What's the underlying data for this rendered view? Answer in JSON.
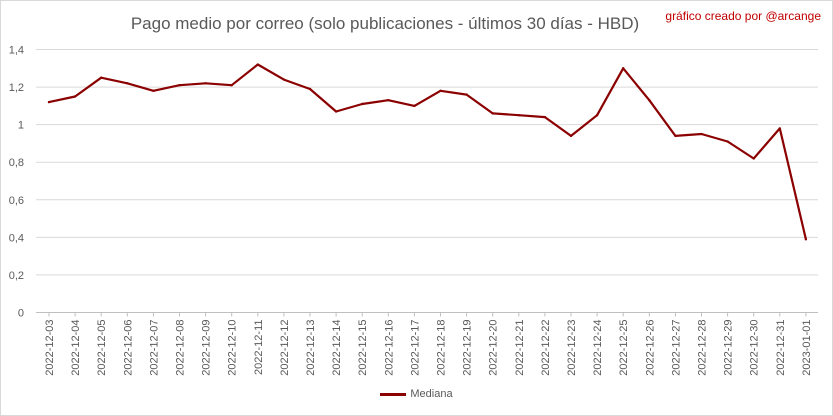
{
  "chart_data": {
    "type": "line",
    "title": "Pago medio por correo (solo publicaciones - últimos 30 días - HBD)",
    "credit": "gráfico creado por @arcange",
    "xlabel": "",
    "ylabel": "",
    "ylim": [
      0,
      1.4
    ],
    "ytick_labels": [
      "0",
      "0,2",
      "0,4",
      "0,6",
      "0,8",
      "1",
      "1,2",
      "1,4"
    ],
    "y_ticks": [
      0,
      0.2,
      0.4,
      0.6,
      0.8,
      1.0,
      1.2,
      1.4
    ],
    "grid": true,
    "legend_position": "bottom",
    "categories": [
      "2022-12-03",
      "2022-12-04",
      "2022-12-05",
      "2022-12-06",
      "2022-12-07",
      "2022-12-08",
      "2022-12-09",
      "2022-12-10",
      "2022-12-11",
      "2022-12-12",
      "2022-12-13",
      "2022-12-14",
      "2022-12-15",
      "2022-12-16",
      "2022-12-17",
      "2022-12-18",
      "2022-12-19",
      "2022-12-20",
      "2022-12-21",
      "2022-12-22",
      "2022-12-23",
      "2022-12-24",
      "2022-12-25",
      "2022-12-26",
      "2022-12-27",
      "2022-12-28",
      "2022-12-29",
      "2022-12-30",
      "2022-12-31",
      "2023-01-01"
    ],
    "series": [
      {
        "name": "Mediana",
        "color": "#8b0000",
        "values": [
          1.12,
          1.15,
          1.25,
          1.22,
          1.18,
          1.21,
          1.22,
          1.21,
          1.32,
          1.24,
          1.19,
          1.07,
          1.11,
          1.13,
          1.1,
          1.18,
          1.16,
          1.06,
          1.05,
          1.04,
          0.94,
          1.05,
          1.3,
          1.13,
          0.94,
          0.95,
          0.91,
          0.82,
          0.98,
          0.39
        ]
      }
    ]
  }
}
